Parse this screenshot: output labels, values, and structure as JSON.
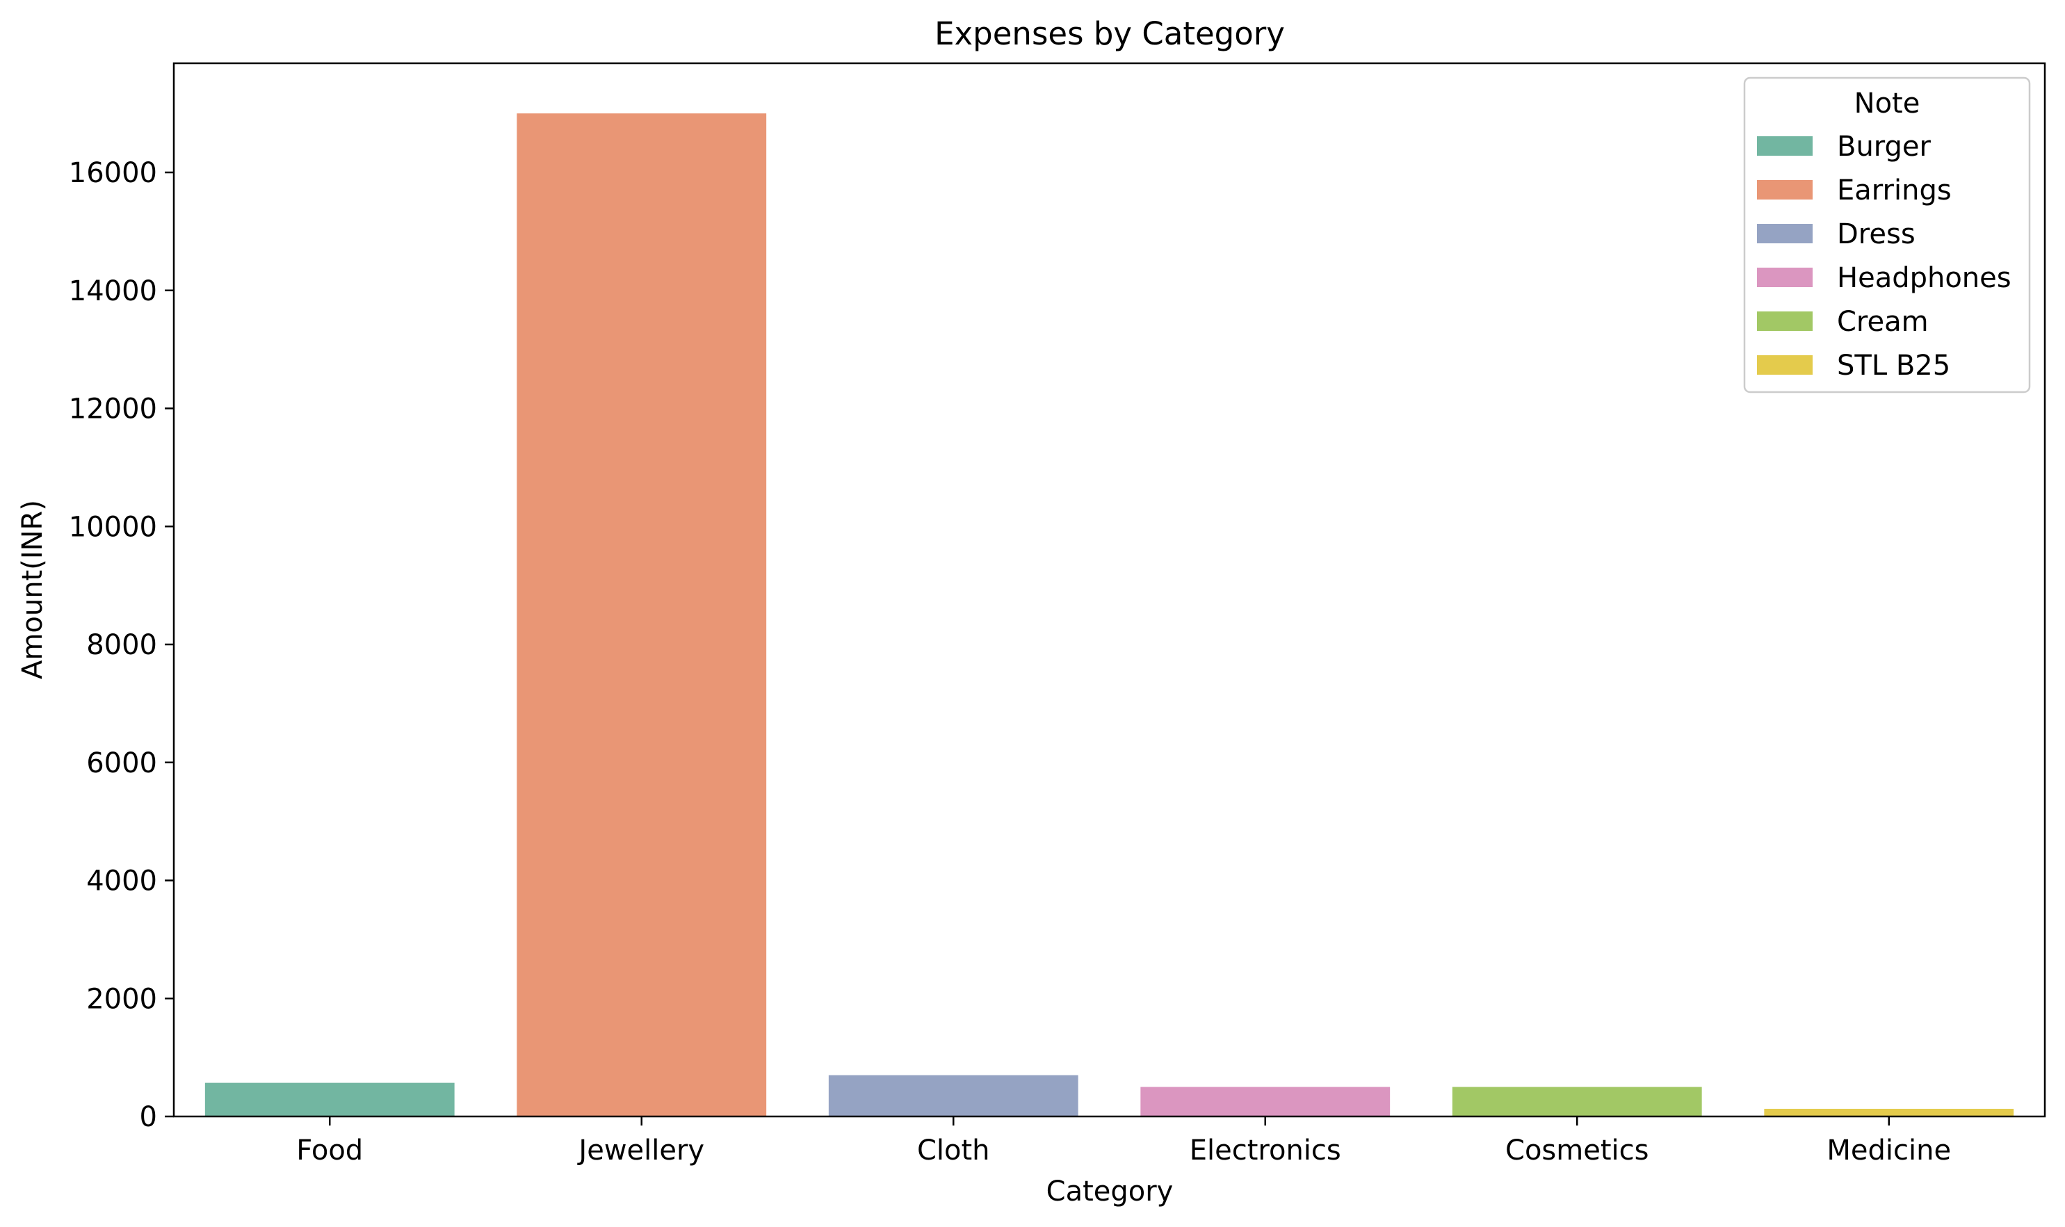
{
  "chart_data": {
    "type": "bar",
    "title": "Expenses by Category",
    "xlabel": "Category",
    "ylabel": "Amount(INR)",
    "categories": [
      "Food",
      "Jewellery",
      "Cloth",
      "Electronics",
      "Cosmetics",
      "Medicine"
    ],
    "values": [
      570,
      17000,
      700,
      500,
      500,
      130
    ],
    "notes": [
      "Burger",
      "Earrings",
      "Dress",
      "Headphones",
      "Cream",
      "STL B25"
    ],
    "colors": [
      "#72b6a1",
      "#e99675",
      "#95a3c3",
      "#db96c0",
      "#a2c865",
      "#e4cb4c"
    ],
    "ylim": [
      0,
      17850
    ],
    "yticks": [
      0,
      2000,
      4000,
      6000,
      8000,
      10000,
      12000,
      14000,
      16000
    ],
    "grid": false,
    "legend": {
      "title": "Note",
      "placement": "top-right"
    }
  }
}
